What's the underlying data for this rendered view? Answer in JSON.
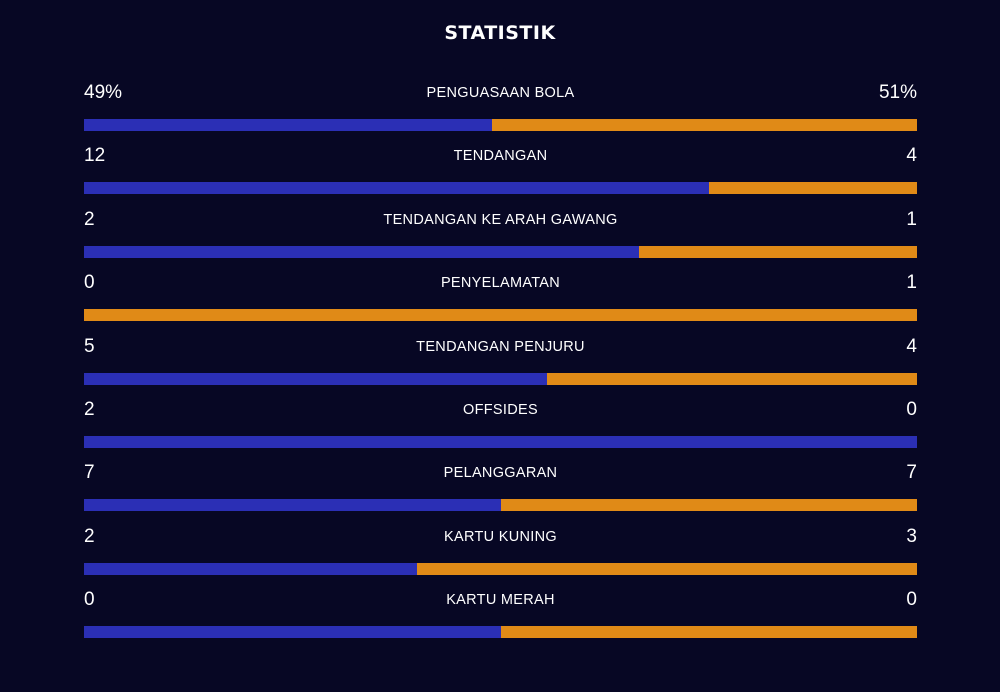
{
  "page": {
    "title": "STATISTIK"
  },
  "colors": {
    "background": "#070724",
    "home": "#2b2fb5",
    "away": "#e08a17"
  },
  "stats": [
    {
      "label": "PENGUASAAN BOLA",
      "home": "49%",
      "away": "51%",
      "home_share": 0.49
    },
    {
      "label": "TENDANGAN",
      "home": "12",
      "away": "4",
      "home_share": 0.75
    },
    {
      "label": "TENDANGAN KE ARAH GAWANG",
      "home": "2",
      "away": "1",
      "home_share": 0.6667
    },
    {
      "label": "PENYELAMATAN",
      "home": "0",
      "away": "1",
      "home_share": 0
    },
    {
      "label": "TENDANGAN PENJURU",
      "home": "5",
      "away": "4",
      "home_share": 0.5556
    },
    {
      "label": "OFFSIDES",
      "home": "2",
      "away": "0",
      "home_share": 1
    },
    {
      "label": "PELANGGARAN",
      "home": "7",
      "away": "7",
      "home_share": 0.5
    },
    {
      "label": "KARTU KUNING",
      "home": "2",
      "away": "3",
      "home_share": 0.4
    },
    {
      "label": "KARTU MERAH",
      "home": "0",
      "away": "0",
      "home_share": 0.5
    }
  ]
}
